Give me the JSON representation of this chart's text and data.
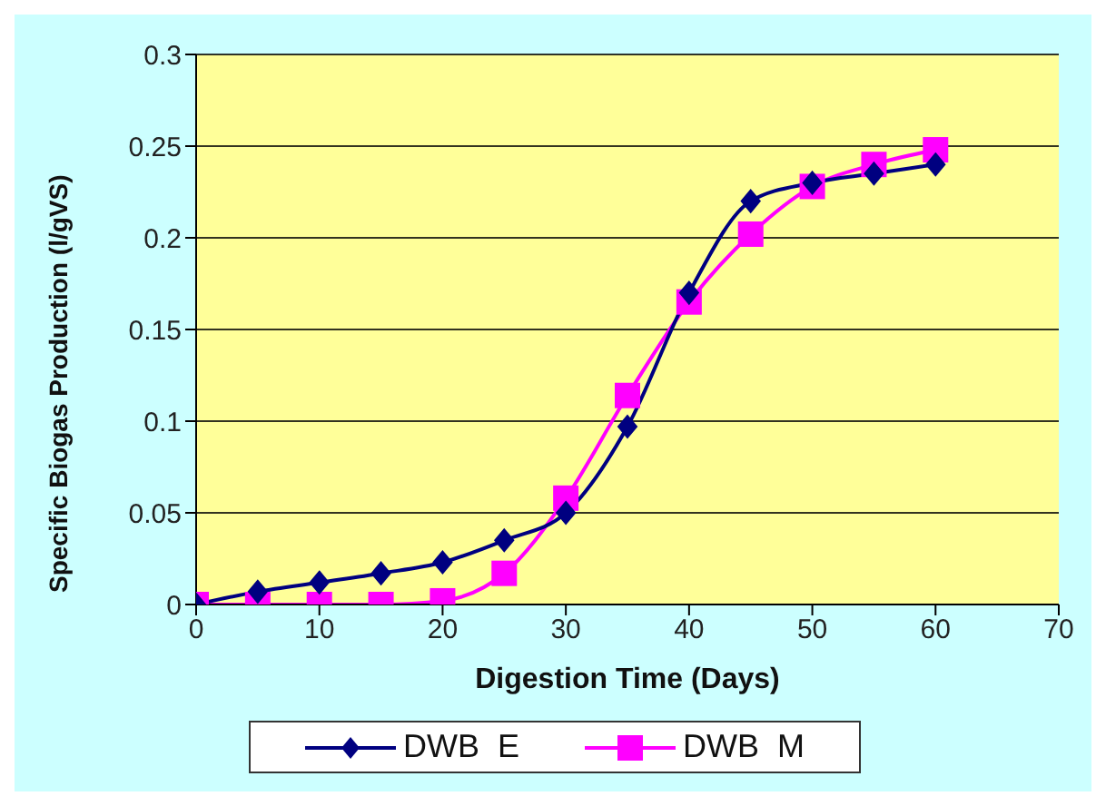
{
  "chart_data": {
    "type": "line",
    "xlabel": "Digestion Time (Days)",
    "ylabel": "Specific Biogas Production  (l/gVS)",
    "x": [
      0,
      5,
      10,
      15,
      20,
      25,
      30,
      35,
      40,
      45,
      50,
      55,
      60
    ],
    "series": [
      {
        "name": "DWB  E",
        "color": "#000080",
        "marker": "diamond",
        "values": [
          0,
          0.007,
          0.012,
          0.017,
          0.023,
          0.035,
          0.05,
          0.097,
          0.17,
          0.22,
          0.23,
          0.235,
          0.24
        ]
      },
      {
        "name": "DWB  M",
        "color": "#ff00ff",
        "marker": "square",
        "values": [
          0,
          0,
          0,
          0,
          0.002,
          0.017,
          0.058,
          0.114,
          0.165,
          0.202,
          0.228,
          0.24,
          0.248
        ]
      }
    ],
    "xlim": [
      0,
      70
    ],
    "xticks": [
      0,
      10,
      20,
      30,
      40,
      50,
      60,
      70
    ],
    "ylim": [
      0,
      0.3
    ],
    "yticks": [
      0,
      0.05,
      0.1,
      0.15,
      0.2,
      0.25,
      0.3
    ],
    "grid": "y",
    "legend": "bottom"
  }
}
